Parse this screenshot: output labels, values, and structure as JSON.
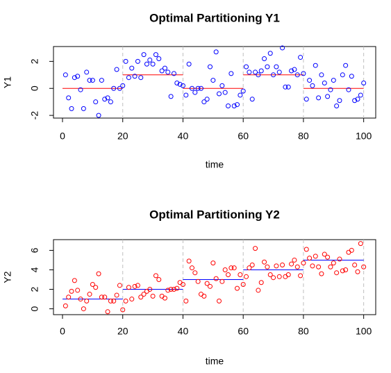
{
  "chart_data": [
    {
      "type": "scatter",
      "title": "Optimal Partitioning Y1",
      "x_label": "time",
      "y_label": "Y1",
      "x": [
        1,
        2,
        3,
        4,
        5,
        6,
        7,
        8,
        9,
        10,
        11,
        12,
        13,
        14,
        15,
        16,
        17,
        18,
        19,
        20,
        21,
        22,
        23,
        24,
        25,
        26,
        27,
        28,
        29,
        30,
        31,
        32,
        33,
        34,
        35,
        36,
        37,
        38,
        39,
        40,
        41,
        42,
        43,
        44,
        45,
        46,
        47,
        48,
        49,
        50,
        51,
        52,
        53,
        54,
        55,
        56,
        57,
        58,
        59,
        60,
        61,
        62,
        63,
        64,
        65,
        66,
        67,
        68,
        69,
        70,
        71,
        72,
        73,
        74,
        75,
        76,
        77,
        78,
        79,
        80,
        81,
        82,
        83,
        84,
        85,
        86,
        87,
        88,
        89,
        90,
        91,
        92,
        93,
        94,
        95,
        96,
        97,
        98,
        99,
        100
      ],
      "values": [
        1.0,
        -0.7,
        -1.5,
        0.8,
        0.9,
        -0.1,
        -1.5,
        1.2,
        0.6,
        0.6,
        -1.0,
        -2.0,
        0.6,
        -0.8,
        -0.7,
        -1.0,
        0.0,
        1.4,
        0.0,
        0.2,
        2.0,
        0.8,
        1.5,
        0.9,
        2.0,
        0.8,
        2.5,
        1.8,
        2.1,
        1.8,
        2.5,
        2.2,
        1.3,
        1.5,
        1.2,
        -0.6,
        1.1,
        0.4,
        0.3,
        0.2,
        -0.5,
        1.8,
        0.0,
        -0.3,
        0.0,
        0.0,
        -1.0,
        -0.8,
        1.6,
        0.6,
        2.7,
        -0.4,
        0.2,
        -0.3,
        -1.3,
        1.1,
        -1.3,
        -1.2,
        -0.5,
        -0.2,
        1.6,
        1.2,
        -0.8,
        1.2,
        1.0,
        1.3,
        2.2,
        1.6,
        2.6,
        1.0,
        1.6,
        1.2,
        3.0,
        0.1,
        0.1,
        1.3,
        1.4,
        1.0,
        2.3,
        1.1,
        -0.8,
        0.6,
        0.2,
        1.7,
        -0.7,
        1.0,
        0.4,
        -0.6,
        -0.1,
        0.6,
        -1.3,
        -0.9,
        1.0,
        1.7,
        -0.1,
        0.9,
        -0.9,
        -0.8,
        -0.5,
        0.4
      ],
      "color": "#0000ff",
      "segments": [
        {
          "start": 0,
          "end": 20,
          "mean": 0
        },
        {
          "start": 20,
          "end": 40,
          "mean": 1
        },
        {
          "start": 40,
          "end": 60,
          "mean": 0
        },
        {
          "start": 60,
          "end": 80,
          "mean": 1
        },
        {
          "start": 80,
          "end": 100,
          "mean": 0
        }
      ],
      "segment_color": "#ff0000",
      "changepoints": [
        20,
        40,
        60,
        80,
        100
      ],
      "changepoint_color": "#bebebe",
      "xlim": [
        -3,
        104
      ],
      "xticks": [
        0,
        20,
        40,
        60,
        80,
        100
      ],
      "ylim": [
        -2.2,
        3.1
      ],
      "yticks": [
        -2,
        0,
        2
      ]
    },
    {
      "type": "scatter",
      "title": "Optimal Partitioning Y2",
      "x_label": "time",
      "y_label": "Y2",
      "x": [
        1,
        2,
        3,
        4,
        5,
        6,
        7,
        8,
        9,
        10,
        11,
        12,
        13,
        14,
        15,
        16,
        17,
        18,
        19,
        20,
        21,
        22,
        23,
        24,
        25,
        26,
        27,
        28,
        29,
        30,
        31,
        32,
        33,
        34,
        35,
        36,
        37,
        38,
        39,
        40,
        41,
        42,
        43,
        44,
        45,
        46,
        47,
        48,
        49,
        50,
        51,
        52,
        53,
        54,
        55,
        56,
        57,
        58,
        59,
        60,
        61,
        62,
        63,
        64,
        65,
        66,
        67,
        68,
        69,
        70,
        71,
        72,
        73,
        74,
        75,
        76,
        77,
        78,
        79,
        80,
        81,
        82,
        83,
        84,
        85,
        86,
        87,
        88,
        89,
        90,
        91,
        92,
        93,
        94,
        95,
        96,
        97,
        98,
        99,
        100
      ],
      "values": [
        0.3,
        1.2,
        1.8,
        2.9,
        1.9,
        1.0,
        0.0,
        0.8,
        1.5,
        2.5,
        2.2,
        3.6,
        1.2,
        1.2,
        -0.3,
        0.8,
        0.8,
        1.4,
        2.4,
        -0.1,
        0.8,
        2.2,
        1.0,
        2.3,
        2.4,
        1.2,
        1.5,
        1.8,
        2.0,
        1.3,
        3.4,
        3.0,
        1.3,
        1.1,
        1.9,
        2.0,
        2.0,
        2.1,
        2.7,
        2.5,
        0.8,
        4.9,
        4.2,
        3.7,
        2.8,
        1.5,
        1.3,
        2.6,
        2.3,
        4.7,
        3.1,
        0.8,
        2.8,
        4.0,
        3.5,
        4.2,
        4.2,
        2.1,
        3.5,
        2.5,
        3.3,
        4.2,
        4.5,
        6.2,
        1.9,
        2.7,
        4.8,
        4.3,
        3.5,
        3.2,
        4.4,
        3.3,
        4.5,
        3.3,
        3.5,
        4.6,
        5.0,
        4.3,
        3.4,
        4.7,
        6.1,
        5.2,
        4.4,
        5.4,
        4.3,
        3.6,
        5.6,
        5.3,
        4.3,
        4.7,
        3.7,
        5.1,
        3.9,
        4.0,
        5.8,
        6.0,
        4.5,
        3.8,
        6.7,
        4.3
      ],
      "color": "#ff0000",
      "segments": [
        {
          "start": 0,
          "end": 20,
          "mean": 1
        },
        {
          "start": 20,
          "end": 40,
          "mean": 2
        },
        {
          "start": 40,
          "end": 60,
          "mean": 3
        },
        {
          "start": 60,
          "end": 80,
          "mean": 4
        },
        {
          "start": 80,
          "end": 100,
          "mean": 5
        }
      ],
      "segment_color": "#0000ff",
      "changepoints": [
        20,
        40,
        60,
        80,
        100
      ],
      "changepoint_color": "#bebebe",
      "xlim": [
        -3,
        104
      ],
      "xticks": [
        0,
        20,
        40,
        60,
        80,
        100
      ],
      "ylim": [
        -0.6,
        7.1
      ],
      "yticks": [
        0,
        2,
        4,
        6
      ]
    }
  ]
}
